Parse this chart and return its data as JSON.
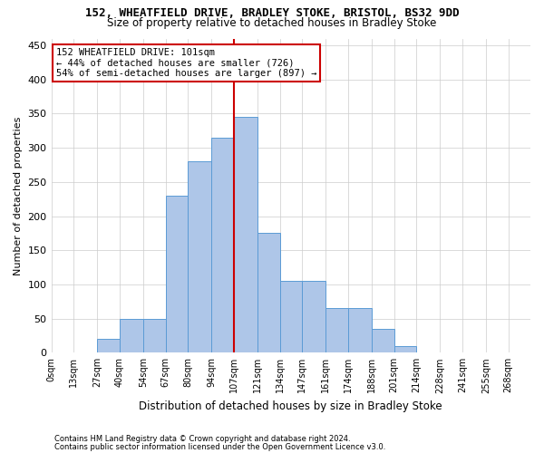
{
  "title1": "152, WHEATFIELD DRIVE, BRADLEY STOKE, BRISTOL, BS32 9DD",
  "title2": "Size of property relative to detached houses in Bradley Stoke",
  "xlabel": "Distribution of detached houses by size in Bradley Stoke",
  "ylabel": "Number of detached properties",
  "footnote1": "Contains HM Land Registry data © Crown copyright and database right 2024.",
  "footnote2": "Contains public sector information licensed under the Open Government Licence v3.0.",
  "bin_labels": [
    "0sqm",
    "13sqm",
    "27sqm",
    "40sqm",
    "54sqm",
    "67sqm",
    "80sqm",
    "94sqm",
    "107sqm",
    "121sqm",
    "134sqm",
    "147sqm",
    "161sqm",
    "174sqm",
    "188sqm",
    "201sqm",
    "214sqm",
    "228sqm",
    "241sqm",
    "255sqm",
    "268sqm"
  ],
  "bin_edges": [
    0,
    13,
    27,
    40,
    54,
    67,
    80,
    94,
    107,
    121,
    134,
    147,
    161,
    174,
    188,
    201,
    214,
    228,
    241,
    255,
    268
  ],
  "bar_heights": [
    1,
    1,
    20,
    50,
    50,
    230,
    280,
    315,
    345,
    175,
    105,
    105,
    65,
    65,
    35,
    10,
    1,
    1,
    0,
    0,
    0
  ],
  "bar_color": "#aec6e8",
  "bar_edge_color": "#5b9bd5",
  "vline_x": 107,
  "vline_color": "#cc0000",
  "annotation_line1": "152 WHEATFIELD DRIVE: 101sqm",
  "annotation_line2": "← 44% of detached houses are smaller (726)",
  "annotation_line3": "54% of semi-detached houses are larger (897) →",
  "annotation_box_color": "#cc0000",
  "ylim": [
    0,
    460
  ],
  "yticks": [
    0,
    50,
    100,
    150,
    200,
    250,
    300,
    350,
    400,
    450
  ],
  "background_color": "#ffffff",
  "grid_color": "#cccccc",
  "figwidth": 6.0,
  "figheight": 5.0,
  "dpi": 100
}
